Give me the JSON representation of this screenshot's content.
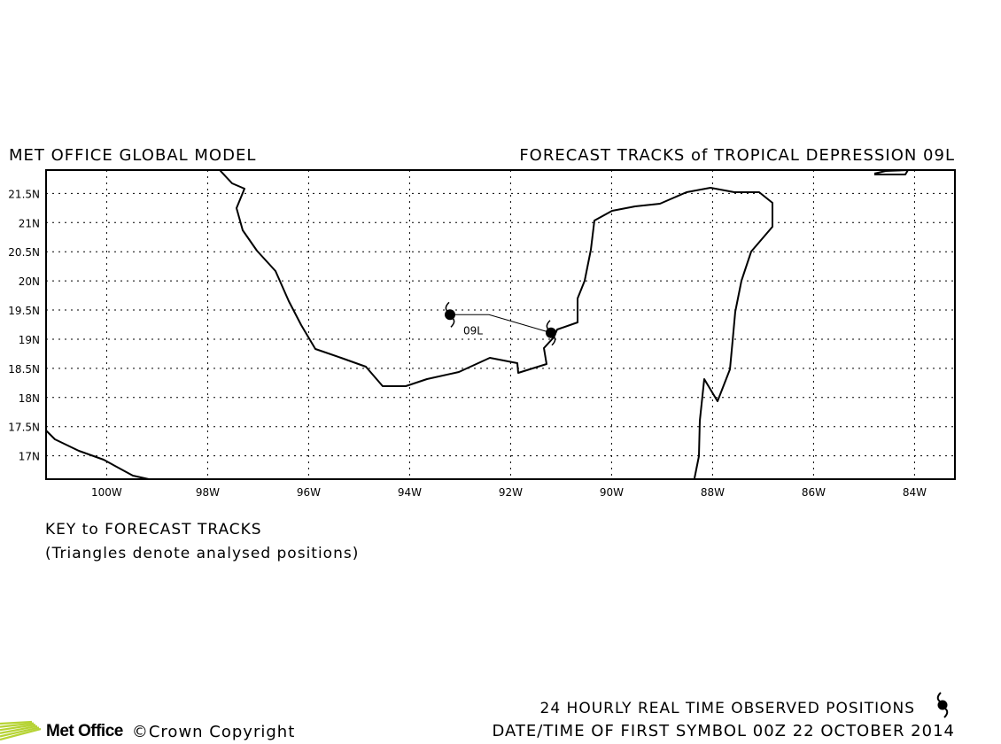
{
  "header": {
    "left_title": "MET OFFICE GLOBAL MODEL",
    "right_title": "FORECAST TRACKS of TROPICAL DEPRESSION 09L"
  },
  "map": {
    "lon_range": [
      -101.2,
      -83.2
    ],
    "lat_range": [
      16.6,
      21.9
    ],
    "grid": true,
    "lat_labels": [
      "17N",
      "17.5N",
      "18N",
      "18.5N",
      "19N",
      "19.5N",
      "20N",
      "20.5N",
      "21N",
      "21.5N"
    ],
    "lon_labels": [
      "100W",
      "98W",
      "96W",
      "94W",
      "92W",
      "90W",
      "88W",
      "86W",
      "84W"
    ],
    "storm_label": "09L",
    "track": [
      {
        "lon": -93.2,
        "lat": 19.42
      },
      {
        "lon": -91.2,
        "lat": 19.11
      }
    ]
  },
  "key": {
    "title": "KEY to FORECAST TRACKS",
    "note": "(Triangles denote analysed positions)"
  },
  "footer": {
    "observed_legend": "24 HOURLY REAL TIME OBSERVED POSITIONS",
    "date_time": "DATE/TIME OF FIRST SYMBOL 00Z 22 OCTOBER 2014",
    "logo": "Met Office",
    "copyright": "Crown Copyright"
  },
  "colors": {
    "logo_green": "#b6d334"
  }
}
